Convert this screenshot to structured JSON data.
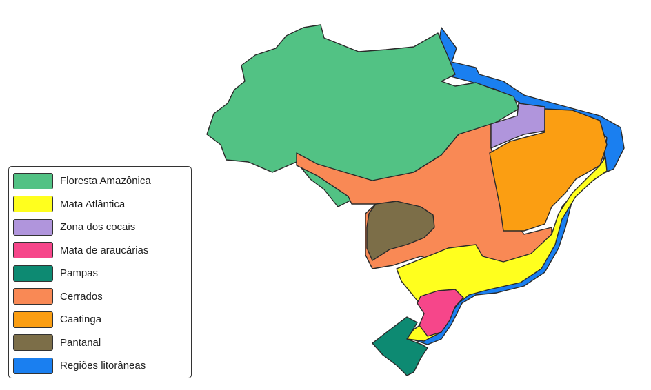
{
  "legend": {
    "items": [
      {
        "label": "Floresta Amazônica",
        "color": "#52c284"
      },
      {
        "label": "Mata Atlântica",
        "color": "#ffff1e"
      },
      {
        "label": "Zona dos cocais",
        "color": "#b095dc"
      },
      {
        "label": "Mata de araucárias",
        "color": "#f6468a"
      },
      {
        "label": "Pampas",
        "color": "#0d8a72"
      },
      {
        "label": "Cerrados",
        "color": "#f98955"
      },
      {
        "label": "Caatinga",
        "color": "#fb9e12"
      },
      {
        "label": "Pantanal",
        "color": "#7c6e48"
      },
      {
        "label": "Regiões litorâneas",
        "color": "#1a7ff0"
      }
    ]
  }
}
